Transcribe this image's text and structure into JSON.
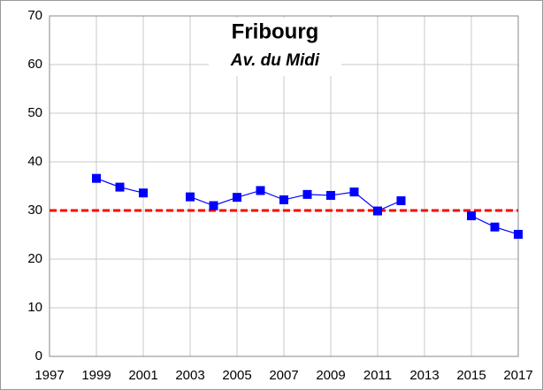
{
  "chart_data": {
    "type": "line",
    "title": "Fribourg",
    "subtitle": "Av. du Midi",
    "x": [
      1999,
      2000,
      2001,
      2002,
      2003,
      2004,
      2005,
      2006,
      2007,
      2008,
      2009,
      2010,
      2011,
      2012,
      2013,
      2014,
      2015,
      2016,
      2017
    ],
    "series": [
      {
        "color": "#0000ff",
        "values": [
          36.6,
          34.8,
          33.6,
          null,
          32.8,
          31.0,
          32.7,
          34.1,
          32.2,
          33.3,
          33.1,
          33.8,
          29.9,
          32.0,
          null,
          null,
          28.9,
          26.6,
          25.1
        ]
      }
    ],
    "reference_line": {
      "value": 30,
      "color": "#ff0000"
    },
    "xlim": [
      1997,
      2017
    ],
    "xticks": [
      1997,
      1999,
      2001,
      2003,
      2005,
      2007,
      2009,
      2011,
      2013,
      2015,
      2017
    ],
    "ylim": [
      0,
      70
    ],
    "yticks": [
      0,
      10,
      20,
      30,
      40,
      50,
      60,
      70
    ],
    "grid": true
  }
}
